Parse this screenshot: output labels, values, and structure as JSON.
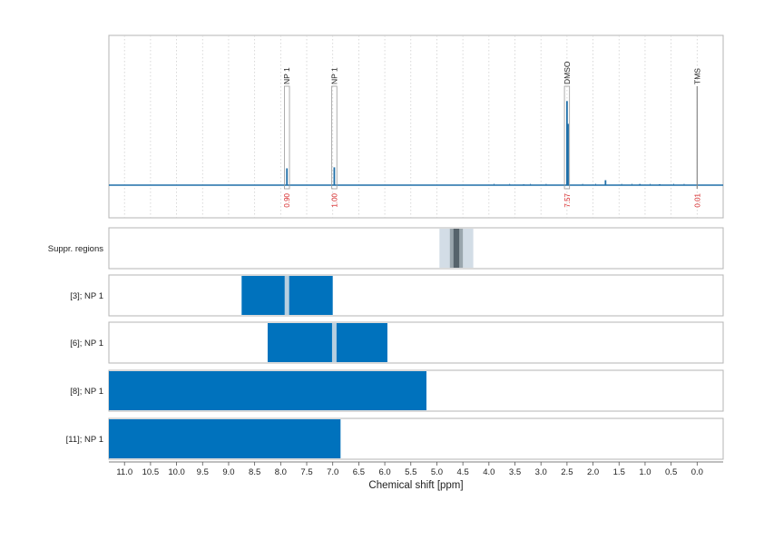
{
  "chart_data": {
    "type": "nmr_spectrum",
    "xlabel": "Chemical shift [ppm]",
    "xlim": [
      11.3,
      -0.5
    ],
    "x_ticks": [
      11.0,
      10.5,
      10.0,
      9.5,
      9.0,
      8.5,
      8.0,
      7.5,
      7.0,
      6.5,
      6.0,
      5.5,
      5.0,
      4.5,
      4.0,
      3.5,
      3.0,
      2.5,
      2.0,
      1.5,
      1.0,
      0.5,
      0.0
    ],
    "x_tick_labels": [
      "11.0",
      "10.5",
      "10.0",
      "9.5",
      "9.0",
      "8.5",
      "8.0",
      "7.5",
      "7.0",
      "6.5",
      "6.0",
      "5.5",
      "5.0",
      "4.5",
      "4.0",
      "3.5",
      "3.0",
      "2.5",
      "2.0",
      "1.5",
      "1.0",
      "0.5",
      "0.0"
    ],
    "spectrum_color": "#1f6fa8",
    "bar_color": "#0072bd",
    "integral_color": "#d62728",
    "spectrum_peaks": [
      {
        "ppm": 7.88,
        "height": 0.17
      },
      {
        "ppm": 6.97,
        "height": 0.18
      },
      {
        "ppm": 2.5,
        "height": 0.85
      },
      {
        "ppm": 2.48,
        "height": 0.62
      },
      {
        "ppm": 1.76,
        "height": 0.05
      },
      {
        "ppm": 1.1,
        "height": 0.012
      },
      {
        "ppm": 0.72,
        "height": 0.01
      },
      {
        "ppm": 3.33,
        "height": 0.008
      }
    ],
    "annotations": [
      {
        "label": "NP 1",
        "ppm": 7.88,
        "integral": "0.90"
      },
      {
        "label": "NP 1",
        "ppm": 6.97,
        "integral": "1.00"
      },
      {
        "label": "DMSO",
        "ppm": 2.5,
        "integral": "7.57"
      },
      {
        "label": "TMS",
        "ppm": 0.0,
        "integral": "0.01"
      }
    ],
    "rows": [
      {
        "label": "Suppr. regions",
        "kind": "suppression",
        "outer": [
          4.95,
          4.3
        ],
        "mid": [
          4.75,
          4.5
        ],
        "inner": [
          4.68,
          4.57
        ]
      },
      {
        "label": "[3]; NP 1",
        "kind": "range",
        "start": 8.75,
        "end": 7.0,
        "marker": 7.88
      },
      {
        "label": "[6]; NP 1",
        "kind": "range",
        "start": 8.25,
        "end": 5.95,
        "marker": 6.97
      },
      {
        "label": "[8]; NP 1",
        "kind": "range",
        "start": 11.3,
        "end": 5.2,
        "marker": null
      },
      {
        "label": "[11]; NP 1",
        "kind": "range",
        "start": 11.3,
        "end": 6.85,
        "marker": null
      }
    ]
  }
}
